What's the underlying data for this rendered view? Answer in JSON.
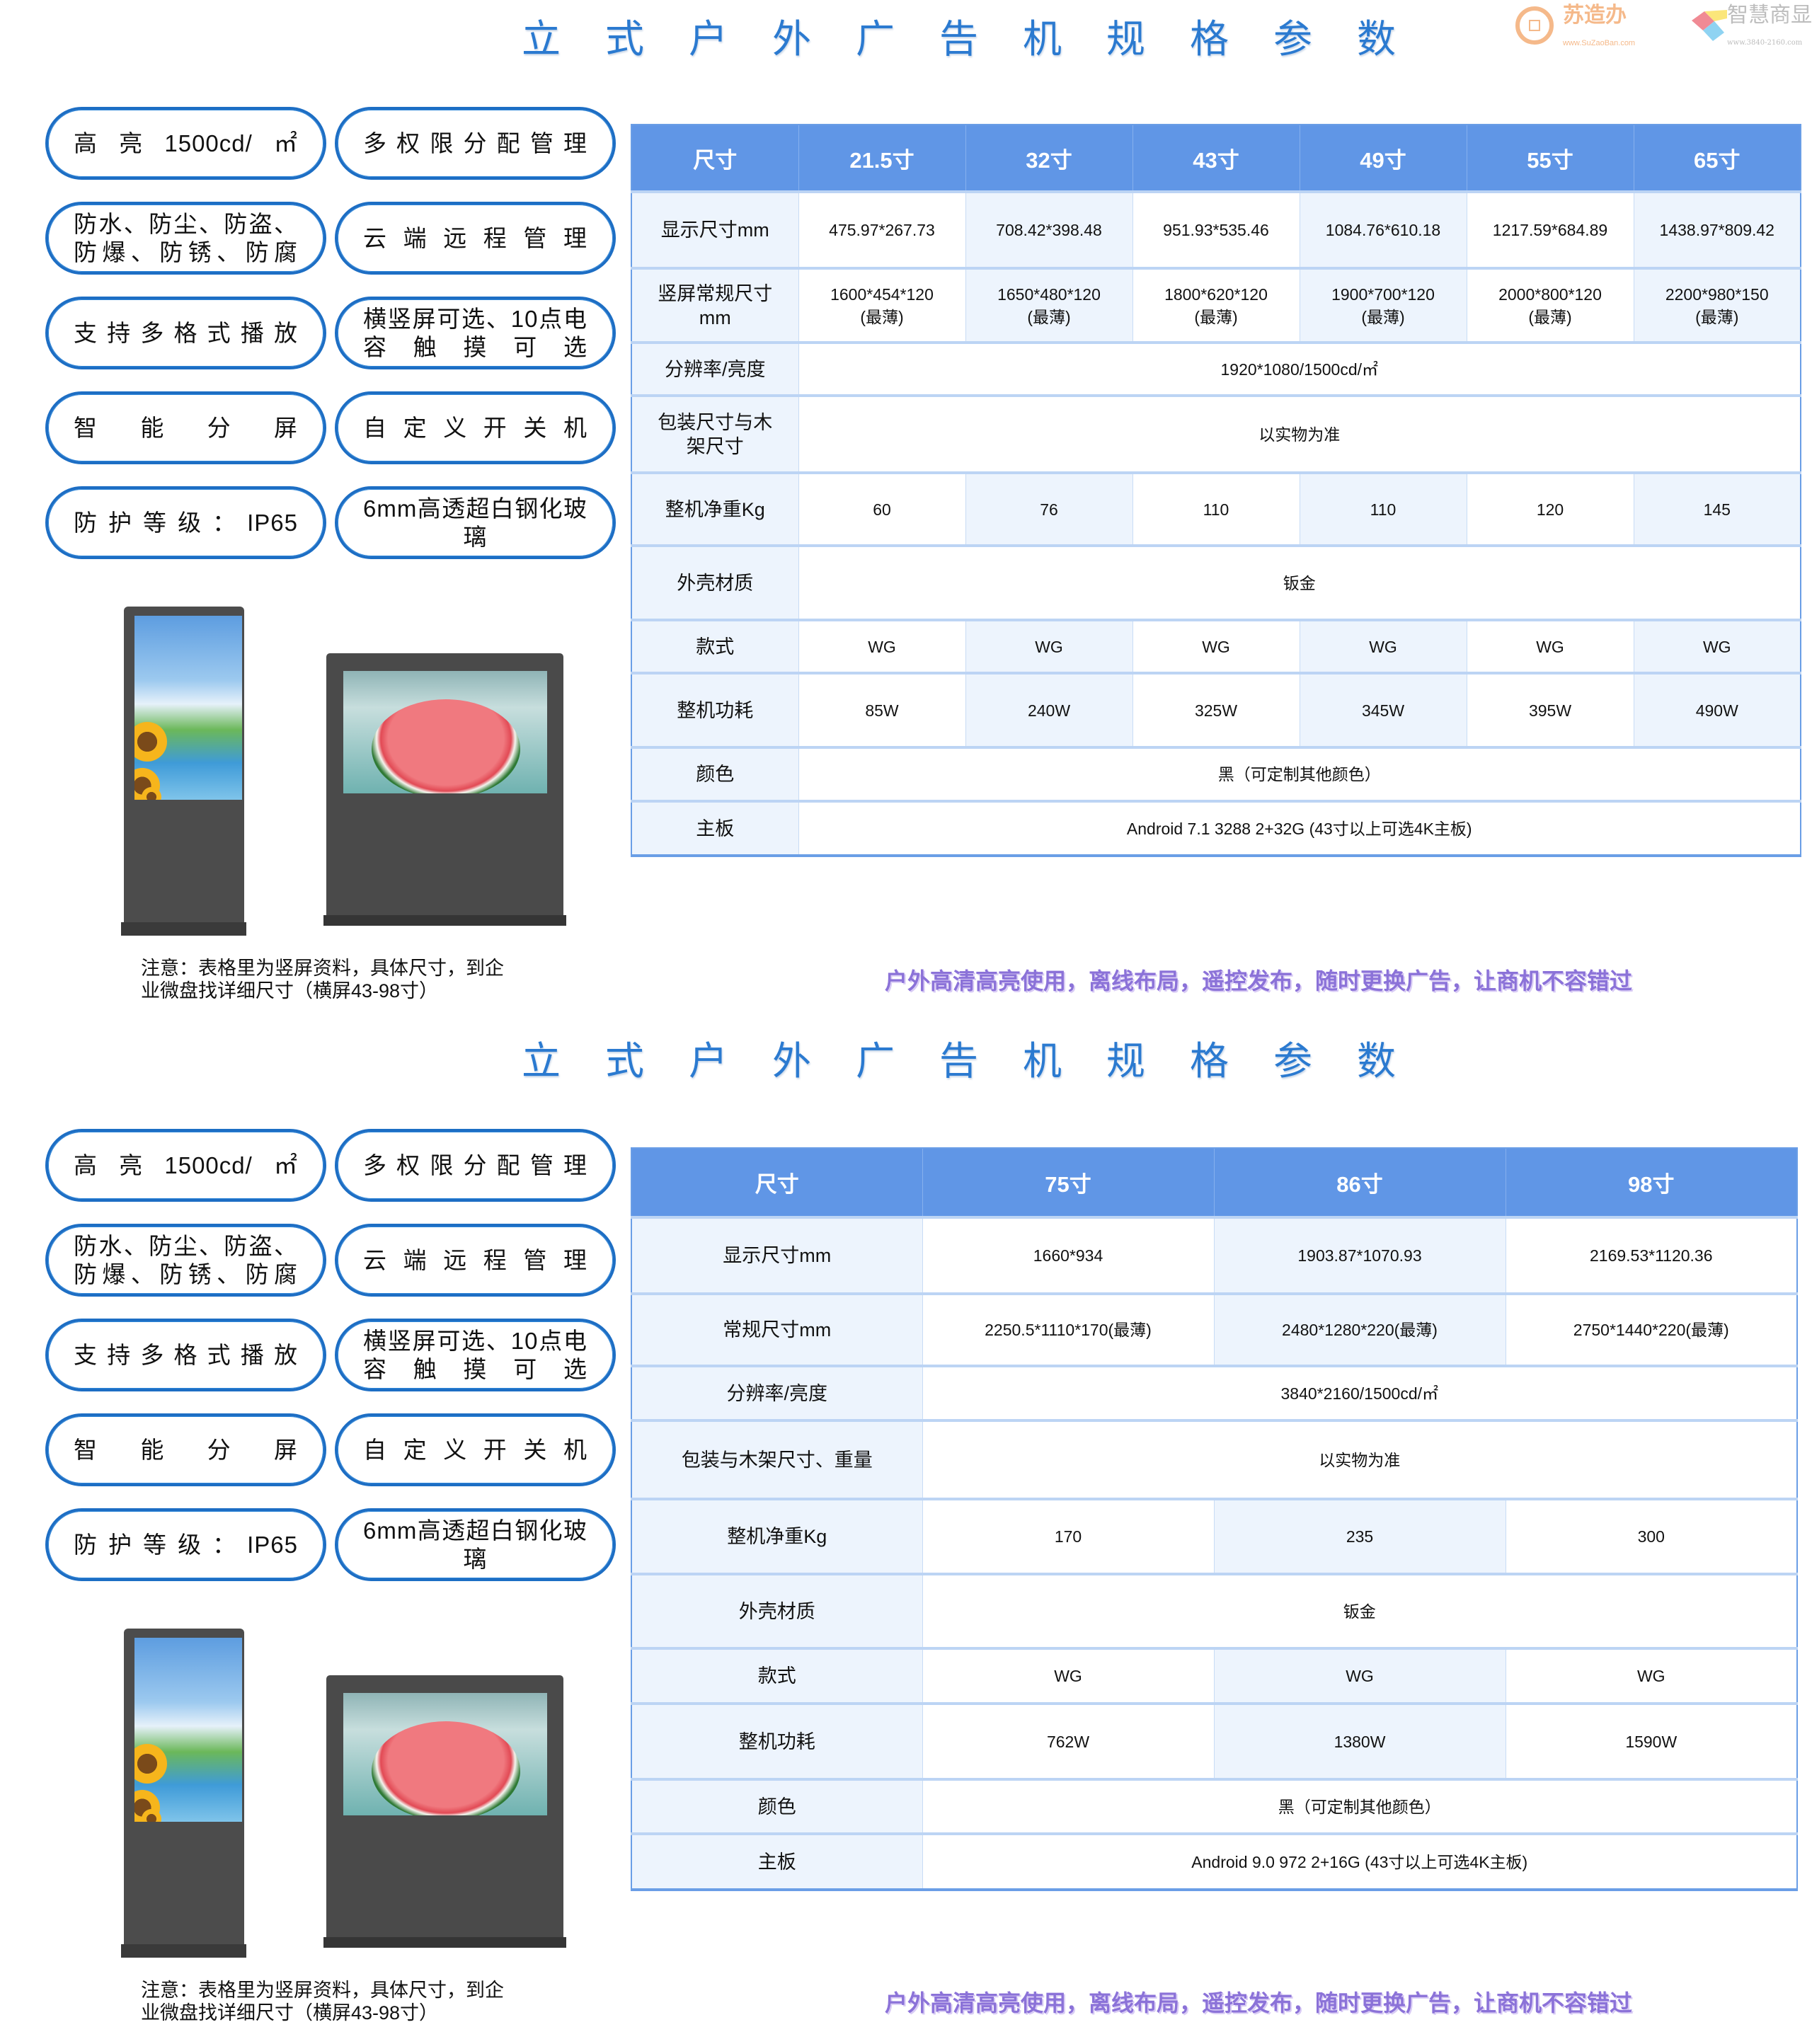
{
  "logos": {
    "logo1_seal_chars": [
      "苏",
      "宝",
      "办",
      "造"
    ],
    "logo1_name": "苏造办",
    "logo1_url": "www.SuZaoBan.com",
    "logo2_name": "智慧商显",
    "logo2_url": "www.3840-2160.com"
  },
  "colors": {
    "title": "#2b7ad0",
    "header": "#6096e6",
    "alt_cell": "#edf4fd",
    "pill_border": "#1d6ec4",
    "slogan": "#8b72d8"
  },
  "sections": [
    {
      "title": "立式户外广告机规格参数",
      "features": [
        {
          "lines": [
            "高亮1500cd/㎡"
          ]
        },
        {
          "lines": [
            "多权限分配管理"
          ]
        },
        {
          "lines": [
            "防水、防尘、防盗、",
            "防爆、防锈、防腐"
          ]
        },
        {
          "lines": [
            "云端远程管理"
          ]
        },
        {
          "lines": [
            "支持多格式播放"
          ]
        },
        {
          "lines": [
            "横竖屏可选、10点电",
            "容触摸可选"
          ]
        },
        {
          "lines": [
            "智能分屏"
          ]
        },
        {
          "lines": [
            "自定义开关机"
          ]
        },
        {
          "lines": [
            "防护等级：IP65"
          ]
        },
        {
          "lines": [
            "6mm高透超白钢化玻",
            "璃"
          ]
        }
      ],
      "note_lines": [
        "注意：表格里为竖屏资料，具体尺寸，到企",
        "业微盘找详细尺寸（横屏43-98寸）"
      ],
      "slogan": "户外高清高亮使用，离线布局，遥控发布，随时更换广告，让商机不容错过",
      "table": {
        "header": [
          "尺寸",
          "21.5寸",
          "32寸",
          "43寸",
          "49寸",
          "55寸",
          "65寸"
        ],
        "rows": [
          {
            "label": "显示尺寸mm",
            "cells": [
              "475.97*267.73",
              "708.42*398.48",
              "951.93*535.46",
              "1084.76*610.18",
              "1217.59*684.89",
              "1438.97*809.42"
            ]
          },
          {
            "label": "竖屏常规尺寸\nmm",
            "cells": [
              "1600*454*120\n(最薄)",
              "1650*480*120\n(最薄)",
              "1800*620*120\n(最薄)",
              "1900*700*120\n(最薄)",
              "2000*800*120\n(最薄)",
              "2200*980*150\n(最薄)"
            ]
          },
          {
            "label": "分辨率/亮度",
            "span": "1920*1080/1500cd/㎡"
          },
          {
            "label": "包装尺寸与木\n架尺寸",
            "span": "以实物为准"
          },
          {
            "label": "整机净重Kg",
            "cells": [
              "60",
              "76",
              "110",
              "110",
              "120",
              "145"
            ]
          },
          {
            "label": "外壳材质",
            "span": "钣金"
          },
          {
            "label": "款式",
            "cells": [
              "WG",
              "WG",
              "WG",
              "WG",
              "WG",
              "WG"
            ]
          },
          {
            "label": "整机功耗",
            "cells": [
              "85W",
              "240W",
              "325W",
              "345W",
              "395W",
              "490W"
            ]
          },
          {
            "label": "颜色",
            "span": "黑（可定制其他颜色）"
          },
          {
            "label": "主板",
            "span": "Android 7.1   3288 2+32G  (43寸以上可选4K主板)"
          }
        ]
      }
    },
    {
      "title": "立式户外广告机规格参数",
      "features": [
        {
          "lines": [
            "高亮1500cd/㎡"
          ]
        },
        {
          "lines": [
            "多权限分配管理"
          ]
        },
        {
          "lines": [
            "防水、防尘、防盗、",
            "防爆、防锈、防腐"
          ]
        },
        {
          "lines": [
            "云端远程管理"
          ]
        },
        {
          "lines": [
            "支持多格式播放"
          ]
        },
        {
          "lines": [
            "横竖屏可选、10点电",
            "容触摸可选"
          ]
        },
        {
          "lines": [
            "智能分屏"
          ]
        },
        {
          "lines": [
            "自定义开关机"
          ]
        },
        {
          "lines": [
            "防护等级：IP65"
          ]
        },
        {
          "lines": [
            "6mm高透超白钢化玻",
            "璃"
          ]
        }
      ],
      "note_lines": [
        "注意：表格里为竖屏资料，具体尺寸，到企",
        "业微盘找详细尺寸（横屏43-98寸）"
      ],
      "slogan": "户外高清高亮使用，离线布局，遥控发布，随时更换广告，让商机不容错过",
      "table": {
        "header": [
          "尺寸",
          "75寸",
          "86寸",
          "98寸"
        ],
        "rows": [
          {
            "label": "显示尺寸mm",
            "cells": [
              "1660*934",
              "1903.87*1070.93",
              "2169.53*1120.36"
            ]
          },
          {
            "label": "常规尺寸mm",
            "cells": [
              "2250.5*1110*170(最薄)",
              "2480*1280*220(最薄)",
              "2750*1440*220(最薄)"
            ]
          },
          {
            "label": "分辨率/亮度",
            "span": "3840*2160/1500cd/㎡"
          },
          {
            "label": "包装与木架尺寸、重量",
            "span": "以实物为准"
          },
          {
            "label": "整机净重Kg",
            "cells": [
              "170",
              "235",
              "300"
            ]
          },
          {
            "label": "外壳材质",
            "span": "钣金"
          },
          {
            "label": "款式",
            "cells": [
              "WG",
              "WG",
              "WG"
            ]
          },
          {
            "label": "整机功耗",
            "cells": [
              "762W",
              "1380W",
              "1590W"
            ]
          },
          {
            "label": "颜色",
            "span": "黑（可定制其他颜色）"
          },
          {
            "label": "主板",
            "span": "Android 9.0   972 2+16G  (43寸以上可选4K主板)"
          }
        ]
      }
    }
  ]
}
